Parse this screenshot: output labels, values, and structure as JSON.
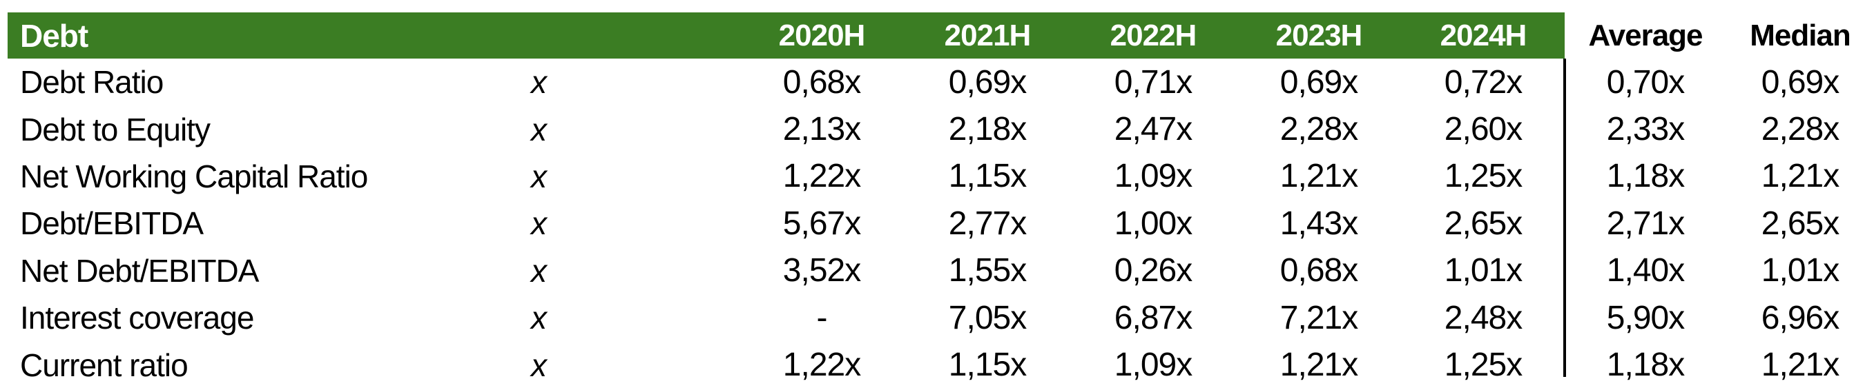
{
  "chart_data": {
    "type": "table",
    "title": "Debt",
    "year_headers": [
      "2020H",
      "2021H",
      "2022H",
      "2023H",
      "2024H"
    ],
    "stat_headers": [
      "Average",
      "Median"
    ],
    "rows": [
      {
        "label": "Debt Ratio",
        "unit": "x",
        "values": [
          "0,68x",
          "0,69x",
          "0,71x",
          "0,69x",
          "0,72x"
        ],
        "average": "0,70x",
        "median": "0,69x"
      },
      {
        "label": "Debt to Equity",
        "unit": "x",
        "values": [
          "2,13x",
          "2,18x",
          "2,47x",
          "2,28x",
          "2,60x"
        ],
        "average": "2,33x",
        "median": "2,28x"
      },
      {
        "label": "Net Working Capital Ratio",
        "unit": "x",
        "values": [
          "1,22x",
          "1,15x",
          "1,09x",
          "1,21x",
          "1,25x"
        ],
        "average": "1,18x",
        "median": "1,21x"
      },
      {
        "label": "Debt/EBITDA",
        "unit": "x",
        "values": [
          "5,67x",
          "2,77x",
          "1,00x",
          "1,43x",
          "2,65x"
        ],
        "average": "2,71x",
        "median": "2,65x"
      },
      {
        "label": "Net Debt/EBITDA",
        "unit": "x",
        "values": [
          "3,52x",
          "1,55x",
          "0,26x",
          "0,68x",
          "1,01x"
        ],
        "average": "1,40x",
        "median": "1,01x"
      },
      {
        "label": "Interest coverage",
        "unit": "x",
        "values": [
          "-",
          "7,05x",
          "6,87x",
          "7,21x",
          "2,48x"
        ],
        "average": "5,90x",
        "median": "6,96x"
      },
      {
        "label": "Current ratio",
        "unit": "x",
        "values": [
          "1,22x",
          "1,15x",
          "1,09x",
          "1,21x",
          "1,25x"
        ],
        "average": "1,18x",
        "median": "1,21x"
      }
    ],
    "colors": {
      "header_bg": "#3b7d23",
      "header_text": "#ffffff",
      "body_text": "#000000",
      "divider": "#000000"
    },
    "layout_hints": {
      "decimal_separator": "comma",
      "value_suffix": "x",
      "divider_between": "2024H and Average"
    }
  }
}
